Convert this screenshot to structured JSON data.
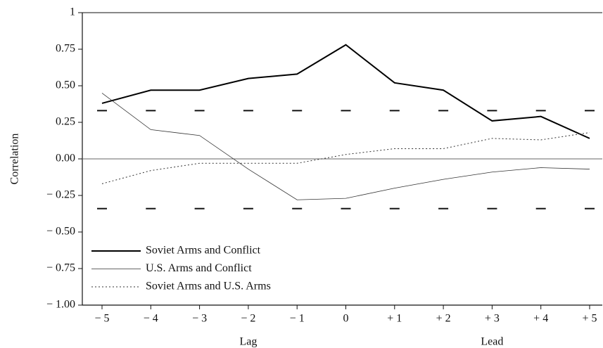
{
  "chart_data": {
    "type": "line",
    "categories": [
      "− 5",
      "− 4",
      "− 3",
      "− 2",
      "− 1",
      "0",
      "+ 1",
      "+ 2",
      "+ 3",
      "+ 4",
      "+ 5"
    ],
    "x_group_labels": [
      "Lag",
      "Lead"
    ],
    "ylabel": "Correlation",
    "series": [
      {
        "name": "Soviet Arms and Conflict",
        "color": "#000000",
        "linestyle": "solid",
        "linewidth": 2,
        "values": [
          0.38,
          0.47,
          0.47,
          0.55,
          0.58,
          0.78,
          0.52,
          0.47,
          0.26,
          0.29,
          0.14
        ]
      },
      {
        "name": "U.S. Arms and Conflict",
        "color": "#333333",
        "linestyle": "solid",
        "linewidth": 0.8,
        "values": [
          0.45,
          0.2,
          0.16,
          -0.07,
          -0.28,
          -0.27,
          -0.2,
          -0.14,
          -0.09,
          -0.06,
          -0.07
        ]
      },
      {
        "name": "Soviet Arms and U.S. Arms",
        "color": "#333333",
        "linestyle": "dotted",
        "linewidth": 1,
        "values": [
          -0.17,
          -0.08,
          -0.03,
          -0.03,
          -0.03,
          0.03,
          0.07,
          0.07,
          0.14,
          0.13,
          0.18
        ]
      }
    ],
    "significance_bounds": [
      0.33,
      -0.34
    ],
    "ylim": [
      -1,
      1
    ],
    "yticks": [
      {
        "value": -1,
        "label": "− 1.00"
      },
      {
        "value": -0.75,
        "label": "− 0.75"
      },
      {
        "value": -0.5,
        "label": "− 0.50"
      },
      {
        "value": -0.25,
        "label": "− 0.25"
      },
      {
        "value": 0,
        "label": "0.00"
      },
      0.25,
      {
        "value": 0.5,
        "label": "0.50"
      },
      0.75,
      1
    ],
    "zero_line": true,
    "legend": "lower left"
  }
}
